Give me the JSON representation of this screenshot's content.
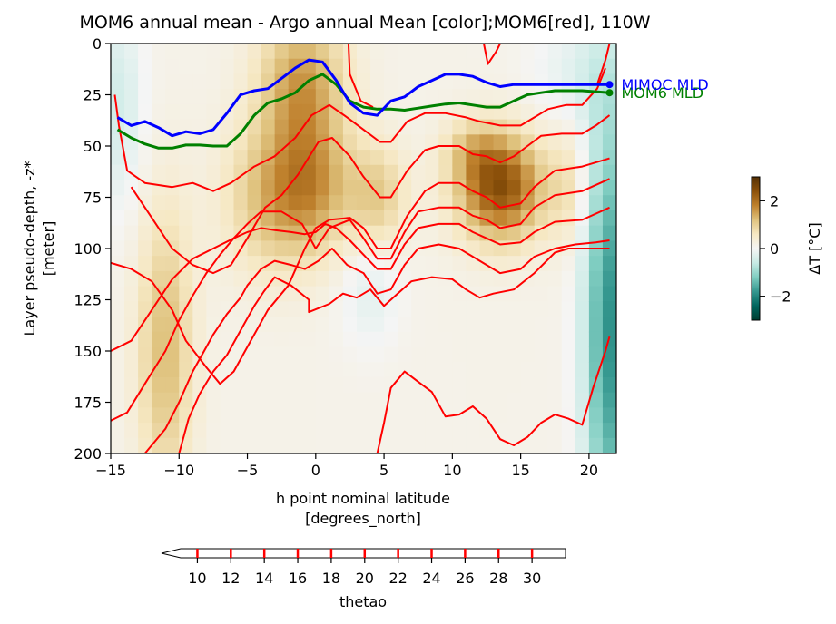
{
  "chart_data": {
    "type": "heatmap",
    "title": "MOM6 annual mean - Argo annual Mean [color];MOM6[red], 110W",
    "xlabel": "h point nominal latitude",
    "xlabel_units": "[degrees_north]",
    "ylabel": "Layer pseudo-depth, -z*",
    "ylabel_units": "[meter]",
    "xlim": [
      -15,
      22
    ],
    "ylim": [
      200,
      0
    ],
    "x_ticks": [
      "−15",
      "−10",
      "−5",
      "0",
      "5",
      "10",
      "15",
      "20"
    ],
    "y_ticks": [
      "0",
      "25",
      "50",
      "75",
      "100",
      "125",
      "150",
      "175",
      "200"
    ],
    "colorbar": {
      "label": "ΔT [°C]",
      "range": [
        -3,
        3
      ],
      "ticks": [
        "−2",
        "0",
        "2"
      ],
      "colormap": "BrBG_r"
    },
    "contour_colorbar": {
      "label": "thetao",
      "ticks": [
        "10",
        "12",
        "14",
        "16",
        "18",
        "20",
        "22",
        "24",
        "26",
        "28",
        "30"
      ],
      "range": [
        9,
        32
      ],
      "line_color": "#ff0000"
    },
    "series": [
      {
        "name": "MOM6 MLD",
        "color": "#008000",
        "x": [
          -14.5,
          -13.5,
          -12.5,
          -11.5,
          -10.5,
          -9.5,
          -8.5,
          -7.5,
          -6.5,
          -5.5,
          -4.5,
          -3.5,
          -2.5,
          -1.5,
          -0.5,
          0.5,
          1.5,
          2.5,
          3.5,
          4.5,
          5.5,
          6.5,
          7.5,
          8.5,
          9.5,
          10.5,
          11.5,
          12.5,
          13.5,
          14.5,
          15.5,
          16.5,
          17.5,
          18.5,
          19.5,
          20.5,
          21.5
        ],
        "y": [
          42,
          46,
          49,
          51,
          51,
          49.5,
          49.5,
          50,
          50,
          44,
          35,
          29,
          27,
          24,
          18,
          15,
          20,
          28,
          31,
          32,
          32,
          32.5,
          31.5,
          30.5,
          29.5,
          29,
          30,
          31,
          31,
          28,
          25,
          24,
          23,
          23,
          23,
          23.5,
          24
        ]
      },
      {
        "name": "MIMOC MLD",
        "color": "#0000ff",
        "x": [
          -14.5,
          -13.5,
          -12.5,
          -11.5,
          -10.5,
          -9.5,
          -8.5,
          -7.5,
          -6.5,
          -5.5,
          -4.5,
          -3.5,
          -2.5,
          -1.5,
          -0.5,
          0.5,
          1.5,
          2.5,
          3.5,
          4.5,
          5.5,
          6.5,
          7.5,
          8.5,
          9.5,
          10.5,
          11.5,
          12.5,
          13.5,
          14.5,
          15.5,
          16.5,
          17.5,
          18.5,
          19.5,
          20.5,
          21.5
        ],
        "y": [
          36,
          40,
          38,
          41,
          45,
          43,
          44,
          42,
          34,
          25,
          23,
          22,
          17,
          12,
          8,
          9,
          18,
          29,
          34,
          35,
          28,
          26,
          21,
          18,
          15,
          15,
          16,
          19,
          21,
          20,
          20,
          20,
          20,
          20,
          20,
          20,
          20
        ]
      }
    ],
    "mld_labels": [
      "MOM6 MLD",
      "MIMOC MLD"
    ],
    "contours": [
      [
        [
          -14.7,
          25
        ],
        [
          -14.4,
          40
        ],
        [
          -13.8,
          62
        ],
        [
          -12.5,
          68
        ],
        [
          -10.5,
          70
        ],
        [
          -9,
          68
        ],
        [
          -7.5,
          72
        ],
        [
          -6.2,
          68
        ],
        [
          -4.5,
          60
        ],
        [
          -3,
          55
        ],
        [
          -1.5,
          46
        ],
        [
          -0.3,
          35
        ],
        [
          1,
          30
        ],
        [
          2.3,
          36
        ],
        [
          3.5,
          42
        ],
        [
          4.7,
          48
        ],
        [
          5.5,
          48
        ],
        [
          6.7,
          38
        ],
        [
          8,
          34
        ],
        [
          9.5,
          34
        ],
        [
          11,
          36
        ],
        [
          12,
          38
        ],
        [
          13.5,
          40
        ],
        [
          15,
          40
        ],
        [
          16,
          36
        ],
        [
          17,
          32
        ],
        [
          18.3,
          30
        ],
        [
          19.5,
          30
        ],
        [
          20.6,
          22
        ],
        [
          21.2,
          12
        ]
      ],
      [
        [
          -13.5,
          70
        ],
        [
          -12,
          85
        ],
        [
          -10.5,
          100
        ],
        [
          -9,
          108
        ],
        [
          -7.5,
          112
        ],
        [
          -6.2,
          108
        ],
        [
          -5,
          95
        ],
        [
          -3.7,
          80
        ],
        [
          -2.5,
          74
        ],
        [
          -1.3,
          64
        ],
        [
          0.2,
          48
        ],
        [
          1.2,
          46
        ],
        [
          2.5,
          55
        ],
        [
          3.5,
          65
        ],
        [
          4.7,
          75
        ],
        [
          5.5,
          75
        ],
        [
          6.7,
          62
        ],
        [
          8,
          52
        ],
        [
          9,
          50
        ],
        [
          10.5,
          50
        ],
        [
          11.5,
          54
        ],
        [
          12.5,
          55
        ],
        [
          13.5,
          58
        ],
        [
          14.5,
          55
        ],
        [
          15.5,
          50
        ],
        [
          16.5,
          45
        ],
        [
          18,
          44
        ],
        [
          19.5,
          44
        ],
        [
          20.5,
          40
        ],
        [
          21.5,
          35
        ]
      ],
      [
        [
          -15,
          107
        ],
        [
          -13.5,
          110
        ],
        [
          -12,
          116
        ],
        [
          -10.5,
          130
        ],
        [
          -9.5,
          145
        ],
        [
          -8,
          158
        ],
        [
          -7,
          166
        ],
        [
          -6,
          160
        ],
        [
          -5,
          148
        ],
        [
          -3.5,
          130
        ],
        [
          -2,
          118
        ],
        [
          -0.8,
          100
        ],
        [
          0,
          90
        ],
        [
          1,
          86
        ],
        [
          2.5,
          85
        ],
        [
          3.5,
          90
        ],
        [
          4.5,
          100
        ],
        [
          5.5,
          100
        ],
        [
          6.7,
          84
        ],
        [
          8,
          72
        ],
        [
          9,
          68
        ],
        [
          10.5,
          68
        ],
        [
          11.5,
          72
        ],
        [
          12.5,
          75
        ],
        [
          13.5,
          80
        ],
        [
          15,
          78
        ],
        [
          16,
          70
        ],
        [
          17.5,
          62
        ],
        [
          19.5,
          60
        ],
        [
          21.5,
          56
        ]
      ],
      [
        [
          -15,
          150
        ],
        [
          -13.5,
          145
        ],
        [
          -12,
          130
        ],
        [
          -10.5,
          115
        ],
        [
          -9,
          105
        ],
        [
          -7.5,
          100
        ],
        [
          -6,
          95
        ],
        [
          -5,
          88
        ],
        [
          -4,
          82
        ],
        [
          -2.5,
          82
        ],
        [
          -1,
          88
        ],
        [
          0,
          100
        ],
        [
          1,
          90
        ],
        [
          2.5,
          86
        ],
        [
          3.5,
          95
        ],
        [
          4.5,
          105
        ],
        [
          5.5,
          105
        ],
        [
          6.5,
          92
        ],
        [
          7.5,
          82
        ],
        [
          9,
          80
        ],
        [
          10.5,
          80
        ],
        [
          11.5,
          84
        ],
        [
          12.5,
          86
        ],
        [
          13.5,
          90
        ],
        [
          15,
          88
        ],
        [
          16,
          80
        ],
        [
          17.5,
          74
        ],
        [
          19.5,
          72
        ],
        [
          21.5,
          66
        ]
      ],
      [
        [
          -15,
          184
        ],
        [
          -13.8,
          180
        ],
        [
          -12.5,
          166
        ],
        [
          -11,
          150
        ],
        [
          -10,
          135
        ],
        [
          -9,
          123
        ],
        [
          -8,
          112
        ],
        [
          -7,
          103
        ],
        [
          -6,
          95
        ],
        [
          -5,
          92
        ],
        [
          -4,
          90
        ],
        [
          -3,
          91
        ],
        [
          -1.8,
          92
        ],
        [
          -0.8,
          93
        ],
        [
          0,
          92
        ],
        [
          0.7,
          88
        ],
        [
          1.5,
          90
        ],
        [
          2.5,
          96
        ],
        [
          3.5,
          103
        ],
        [
          4.5,
          110
        ],
        [
          5.5,
          110
        ],
        [
          6.5,
          98
        ],
        [
          7.5,
          90
        ],
        [
          9,
          88
        ],
        [
          10.5,
          88
        ],
        [
          11.5,
          92
        ],
        [
          12.5,
          95
        ],
        [
          13.5,
          98
        ],
        [
          15,
          97
        ],
        [
          16,
          92
        ],
        [
          17.5,
          87
        ],
        [
          19.5,
          86
        ],
        [
          21.5,
          80
        ]
      ],
      [
        [
          -12.5,
          200
        ],
        [
          -11,
          188
        ],
        [
          -10,
          175
        ],
        [
          -9,
          160
        ],
        [
          -8,
          148
        ],
        [
          -7.5,
          142
        ],
        [
          -6.5,
          132
        ],
        [
          -5.5,
          124
        ],
        [
          -5,
          118
        ],
        [
          -4,
          110
        ],
        [
          -3,
          106
        ],
        [
          -1.8,
          108
        ],
        [
          -0.8,
          110
        ],
        [
          0.2,
          106
        ],
        [
          1.2,
          100
        ],
        [
          2.3,
          108
        ],
        [
          3.5,
          112
        ],
        [
          4.5,
          122
        ],
        [
          5.5,
          120
        ],
        [
          6.5,
          108
        ],
        [
          7.5,
          100
        ],
        [
          9,
          98
        ],
        [
          10.5,
          100
        ],
        [
          11.5,
          104
        ],
        [
          12.5,
          108
        ],
        [
          13.5,
          112
        ],
        [
          15,
          110
        ],
        [
          16,
          104
        ],
        [
          17.5,
          100
        ],
        [
          19,
          98
        ],
        [
          20.5,
          97
        ],
        [
          21.5,
          96
        ]
      ],
      [
        [
          -10,
          200
        ],
        [
          -9.3,
          183
        ],
        [
          -8.5,
          171
        ],
        [
          -7.5,
          160
        ],
        [
          -6.5,
          152
        ],
        [
          -5.5,
          140
        ],
        [
          -4.5,
          128
        ],
        [
          -3.8,
          121
        ],
        [
          -3,
          114
        ],
        [
          -1.8,
          118
        ],
        [
          -0.5,
          125
        ],
        [
          -0.5,
          131
        ],
        [
          1,
          127
        ],
        [
          2,
          122
        ],
        [
          3,
          124
        ],
        [
          4,
          120
        ],
        [
          5,
          128
        ],
        [
          6,
          122
        ],
        [
          7,
          116
        ],
        [
          8.5,
          114
        ],
        [
          10,
          115
        ],
        [
          11,
          120
        ],
        [
          12,
          124
        ],
        [
          13,
          122
        ],
        [
          14.5,
          120
        ],
        [
          16,
          112
        ],
        [
          17.5,
          102
        ],
        [
          18.5,
          100
        ],
        [
          20,
          100
        ],
        [
          21.5,
          100
        ]
      ],
      [
        [
          4.5,
          200
        ],
        [
          5,
          185
        ],
        [
          5.5,
          168
        ],
        [
          6.5,
          160
        ],
        [
          7.5,
          165
        ],
        [
          8.5,
          170
        ],
        [
          9.5,
          182
        ],
        [
          10.5,
          181
        ],
        [
          11.5,
          177
        ],
        [
          12.5,
          183
        ],
        [
          13.5,
          193
        ],
        [
          14.5,
          196
        ],
        [
          15.5,
          192
        ],
        [
          16.5,
          185
        ],
        [
          17.5,
          181
        ],
        [
          18.5,
          183
        ],
        [
          19.5,
          186
        ],
        [
          20.3,
          168
        ],
        [
          21.2,
          150
        ],
        [
          21.5,
          143
        ]
      ],
      [
        [
          2.4,
          0
        ],
        [
          2.5,
          15
        ],
        [
          3.3,
          28
        ],
        [
          4.2,
          31
        ]
      ],
      [
        [
          12.3,
          0
        ],
        [
          12.6,
          10
        ],
        [
          13.2,
          4
        ],
        [
          13.5,
          0
        ]
      ],
      [
        [
          21.5,
          0
        ],
        [
          21.2,
          8
        ],
        [
          20.6,
          20
        ]
      ]
    ]
  }
}
